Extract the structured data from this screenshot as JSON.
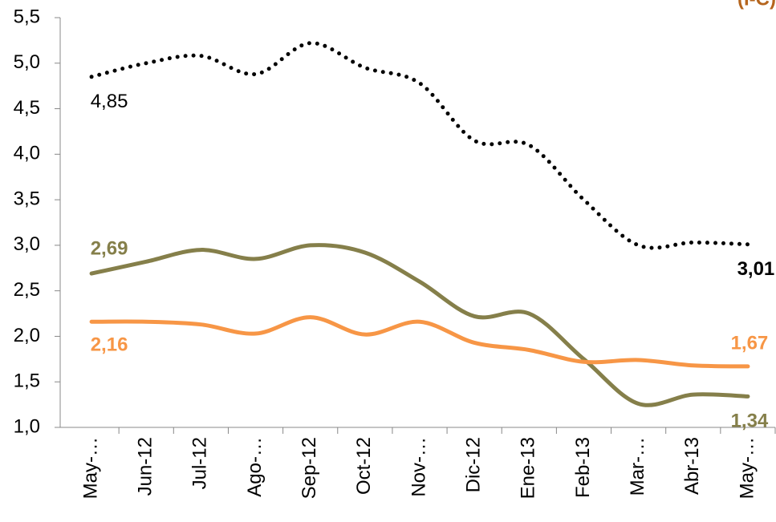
{
  "chart_data": {
    "type": "line",
    "annotation": "(I-C)",
    "categories": [
      "May-…",
      "Jun-12",
      "Jul-12",
      "Ago-…",
      "Sep-12",
      "Oct-12",
      "Nov-…",
      "Dic-12",
      "Ene-13",
      "Feb-13",
      "Mar-…",
      "Abr-13",
      "May-…"
    ],
    "series": [
      {
        "color": "#000000",
        "dotted": true,
        "values": [
          4.85,
          5.0,
          5.08,
          4.88,
          5.22,
          4.95,
          4.78,
          4.15,
          4.1,
          3.5,
          3.0,
          3.03,
          3.01
        ],
        "value_labels": [
          "4,85",
          null,
          null,
          null,
          null,
          null,
          null,
          null,
          null,
          null,
          null,
          null,
          "3,01"
        ]
      },
      {
        "color": "#857f4a",
        "values": [
          2.69,
          2.82,
          2.95,
          2.85,
          3.0,
          2.92,
          2.6,
          2.22,
          2.25,
          1.75,
          1.26,
          1.36,
          1.34
        ],
        "value_labels": [
          "2,69",
          null,
          null,
          null,
          null,
          null,
          null,
          null,
          null,
          null,
          null,
          null,
          "1,34"
        ]
      },
      {
        "color": "#f79646",
        "values": [
          2.16,
          2.16,
          2.13,
          2.03,
          2.21,
          2.02,
          2.16,
          1.93,
          1.85,
          1.72,
          1.74,
          1.68,
          1.67
        ],
        "value_labels": [
          "2,16",
          null,
          null,
          null,
          null,
          null,
          null,
          null,
          null,
          null,
          null,
          null,
          "1,67"
        ]
      }
    ],
    "ylim": [
      1.0,
      5.5
    ],
    "yticks": [
      {
        "value": 1.0,
        "label": "1,0"
      },
      {
        "value": 1.5,
        "label": "1,5"
      },
      {
        "value": 2.0,
        "label": "2,0"
      },
      {
        "value": 2.5,
        "label": "2,5"
      },
      {
        "value": 3.0,
        "label": "3,0"
      },
      {
        "value": 3.5,
        "label": "3,5"
      },
      {
        "value": 4.0,
        "label": "4,0"
      },
      {
        "value": 4.5,
        "label": "4,5"
      },
      {
        "value": 5.0,
        "label": "5,0"
      },
      {
        "value": 5.5,
        "label": "5,5"
      }
    ],
    "grid": false
  }
}
